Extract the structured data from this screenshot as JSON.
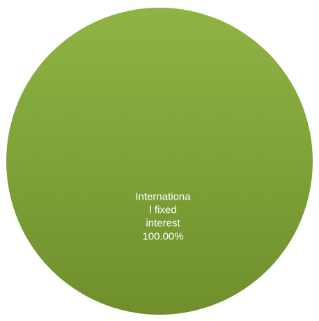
{
  "chart_data": {
    "type": "pie",
    "title": "",
    "slices": [
      {
        "name": "International fixed interest",
        "value": 100.0,
        "percent_label": "100.00%",
        "label_lines": [
          "Internationa",
          "l fixed",
          "interest",
          "100.00%"
        ],
        "color": "#7d9f36"
      }
    ],
    "legend": "none"
  },
  "colors": {
    "slice_light": "#8fb443",
    "slice_dark": "#6f8f2c"
  }
}
